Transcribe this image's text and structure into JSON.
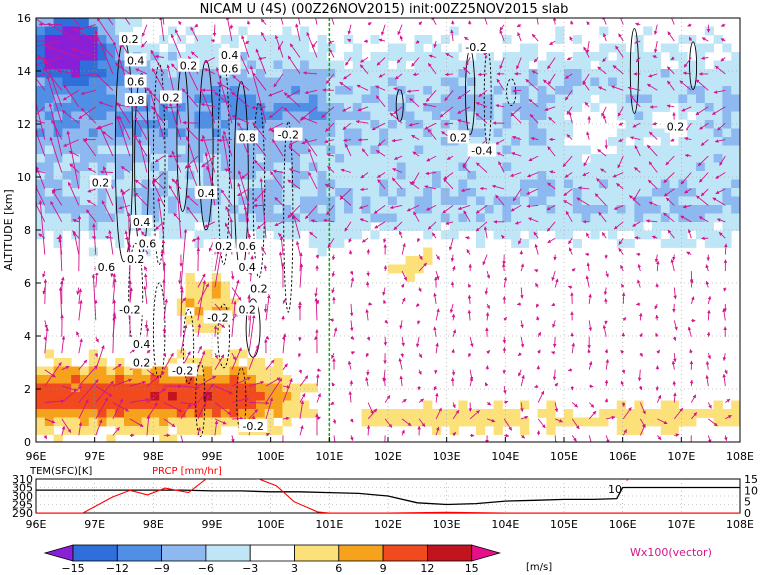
{
  "chart_data": [
    {
      "type": "heatmap",
      "title": "NICAM U (4S) (00Z26NOV2015) init:00Z25NOV2015 slab",
      "ylabel": "ALTITUDE [km]",
      "xlabel": "",
      "x_ticks": [
        "96E",
        "97E",
        "98E",
        "99E",
        "100E",
        "101E",
        "102E",
        "103E",
        "104E",
        "105E",
        "106E",
        "107E",
        "108E"
      ],
      "y_ticks": [
        "0",
        "2",
        "4",
        "6",
        "8",
        "10",
        "12",
        "14",
        "16"
      ],
      "xlim": [
        96,
        108
      ],
      "ylim": [
        0,
        16
      ],
      "grid": true,
      "marker_line_lon": 101,
      "contour_labels": [
        {
          "text": "0.2",
          "lon": 97.1,
          "alt": 9.8
        },
        {
          "text": "0.2",
          "lon": 97.6,
          "alt": 15.2
        },
        {
          "text": "0.4",
          "lon": 97.7,
          "alt": 14.4
        },
        {
          "text": "0.6",
          "lon": 97.7,
          "alt": 13.6
        },
        {
          "text": "0.8",
          "lon": 97.7,
          "alt": 12.9
        },
        {
          "text": "0.2",
          "lon": 98.3,
          "alt": 13.0
        },
        {
          "text": "0.2",
          "lon": 98.6,
          "alt": 14.2
        },
        {
          "text": "0.4",
          "lon": 99.3,
          "alt": 14.6
        },
        {
          "text": "0.6",
          "lon": 99.3,
          "alt": 14.1
        },
        {
          "text": "0.8",
          "lon": 99.6,
          "alt": 11.5
        },
        {
          "text": "-0.2",
          "lon": 100.3,
          "alt": 11.6
        },
        {
          "text": "0.4",
          "lon": 98.9,
          "alt": 9.4
        },
        {
          "text": "0.4",
          "lon": 97.8,
          "alt": 8.3
        },
        {
          "text": "0.6",
          "lon": 97.9,
          "alt": 7.5
        },
        {
          "text": "0.6",
          "lon": 97.2,
          "alt": 6.6
        },
        {
          "text": "0.2",
          "lon": 97.7,
          "alt": 6.9
        },
        {
          "text": "0.2",
          "lon": 99.2,
          "alt": 7.4
        },
        {
          "text": "0.6",
          "lon": 99.6,
          "alt": 7.4
        },
        {
          "text": "0.4",
          "lon": 99.6,
          "alt": 6.6
        },
        {
          "text": "0.2",
          "lon": 99.8,
          "alt": 5.8
        },
        {
          "text": "-0.2",
          "lon": 97.6,
          "alt": 5.0
        },
        {
          "text": "-0.2",
          "lon": 99.1,
          "alt": 4.7
        },
        {
          "text": "0.2",
          "lon": 99.6,
          "alt": 5.0
        },
        {
          "text": "0.4",
          "lon": 97.8,
          "alt": 3.7
        },
        {
          "text": "0.2",
          "lon": 97.8,
          "alt": 3.0
        },
        {
          "text": "-0.2",
          "lon": 98.5,
          "alt": 2.7
        },
        {
          "text": "-0.2",
          "lon": 99.7,
          "alt": 0.6
        },
        {
          "text": "-0.2",
          "lon": 103.5,
          "alt": 14.9
        },
        {
          "text": "0.2",
          "lon": 103.2,
          "alt": 11.5
        },
        {
          "text": "-0.4",
          "lon": 103.6,
          "alt": 11.0
        },
        {
          "text": "0.2",
          "lon": 106.9,
          "alt": 11.9
        }
      ],
      "legend_vector": "Wx100(vector)"
    },
    {
      "type": "line",
      "x_ticks": [
        "96E",
        "97E",
        "98E",
        "99E",
        "100E",
        "101E",
        "102E",
        "103E",
        "104E",
        "105E",
        "106E",
        "107E",
        "108E"
      ],
      "series": [
        {
          "name": "TEM(SFC)[K]",
          "color": "#000000",
          "x": [
            96,
            97,
            98,
            98.5,
            99,
            99.5,
            100,
            100.5,
            101,
            101.5,
            102,
            102.5,
            103,
            103.5,
            104,
            104.5,
            105,
            105.5,
            105.9,
            106,
            106.5,
            107,
            107.5,
            108
          ],
          "y": [
            303.5,
            303.5,
            303.5,
            303.5,
            303.0,
            303.0,
            302.5,
            302.5,
            302.0,
            301.5,
            300.0,
            296.0,
            295.0,
            295.5,
            297.0,
            297.5,
            298.0,
            298.0,
            298.5,
            305.0,
            305.0,
            305.0,
            305.0,
            305.0
          ]
        },
        {
          "name": "PRCP [mm/hr]",
          "color": "#ff0000",
          "x": [
            96,
            96.8,
            97.3,
            97.6,
            97.9,
            98.2,
            98.6,
            98.9,
            99.2,
            99.5,
            99.8,
            100.1,
            100.4,
            100.8,
            101,
            102,
            103,
            104,
            105,
            106,
            107,
            108
          ],
          "y": [
            0,
            0,
            7,
            10,
            8,
            11,
            9,
            15,
            16,
            16,
            15,
            12,
            5,
            0.5,
            0,
            0,
            0.3,
            0,
            0,
            0,
            0,
            0
          ]
        }
      ],
      "left_ticks": [
        "310",
        "305",
        "300",
        "295",
        "290"
      ],
      "left_ylim": [
        290,
        310
      ],
      "right_ticks": [
        "15",
        "10",
        "5",
        "0"
      ],
      "right_ylim": [
        0,
        15
      ],
      "annotation": "10"
    }
  ],
  "colorbar": {
    "ticks": [
      "-15",
      "-12",
      "-9",
      "-6",
      "-3",
      "3",
      "6",
      "9",
      "12",
      "15"
    ],
    "unit": "[m/s]",
    "colors": [
      "#8a1fd8",
      "#2f6fdc",
      "#4f8fe6",
      "#8db8f0",
      "#bfe6f7",
      "#ffffff",
      "#fce07a",
      "#f7a21d",
      "#f04a1e",
      "#c2141e",
      "#e8108a"
    ]
  },
  "colors": {
    "vector": "#d4148c",
    "marker_line": "#1aa01a",
    "tem": "#000000",
    "prcp": "#ff0000"
  }
}
